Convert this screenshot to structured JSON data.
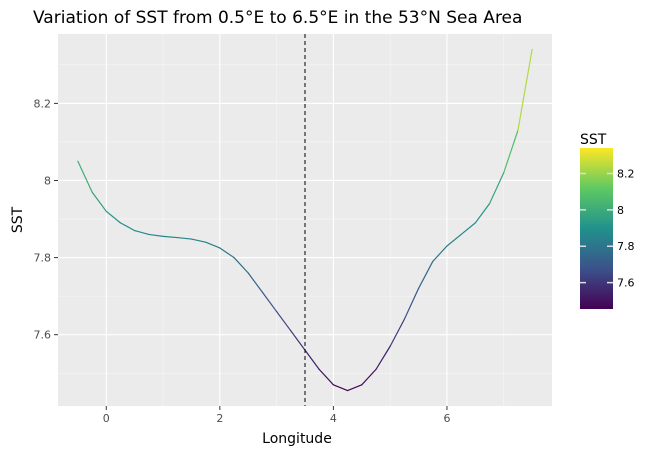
{
  "chart_data": {
    "type": "line",
    "title": "Variation of SST from 0.5°E to 6.5°E in the 53°N Sea Area",
    "xlabel": "Longitude",
    "ylabel": "SST",
    "xlim": [
      -0.85,
      7.85
    ],
    "ylim": [
      7.415,
      8.38
    ],
    "x_ticks": [
      0,
      2,
      4,
      6
    ],
    "y_ticks": [
      7.6,
      7.8,
      8,
      8.2
    ],
    "y_tick_labels": [
      "7.6",
      "7.8",
      "8",
      "8.2"
    ],
    "grid": true,
    "reference_line": {
      "x": 3.5,
      "style": "dashed",
      "color": "#000000"
    },
    "color_scale": {
      "title": "SST",
      "palette": "viridis",
      "range": [
        7.455,
        8.34
      ],
      "ticks": [
        7.6,
        7.8,
        8,
        8.2
      ],
      "tick_labels": [
        "7.6",
        "7.8",
        "8",
        "8.2"
      ],
      "placement": "right"
    },
    "series": [
      {
        "x": [
          -0.5,
          -0.25,
          0,
          0.25,
          0.5,
          0.75,
          1,
          1.25,
          1.5,
          1.75,
          2,
          2.25,
          2.5,
          2.75,
          3,
          3.25,
          3.5,
          3.75,
          4,
          4.25,
          4.5,
          4.75,
          5,
          5.25,
          5.5,
          5.75,
          6,
          6.25,
          6.5,
          6.75,
          7,
          7.25,
          7.5
        ],
        "y": [
          8.05,
          7.97,
          7.92,
          7.89,
          7.87,
          7.86,
          7.855,
          7.852,
          7.848,
          7.84,
          7.825,
          7.8,
          7.76,
          7.71,
          7.66,
          7.61,
          7.56,
          7.51,
          7.47,
          7.455,
          7.47,
          7.51,
          7.57,
          7.64,
          7.72,
          7.79,
          7.83,
          7.86,
          7.89,
          7.94,
          8.02,
          8.13,
          8.34
        ]
      }
    ]
  }
}
